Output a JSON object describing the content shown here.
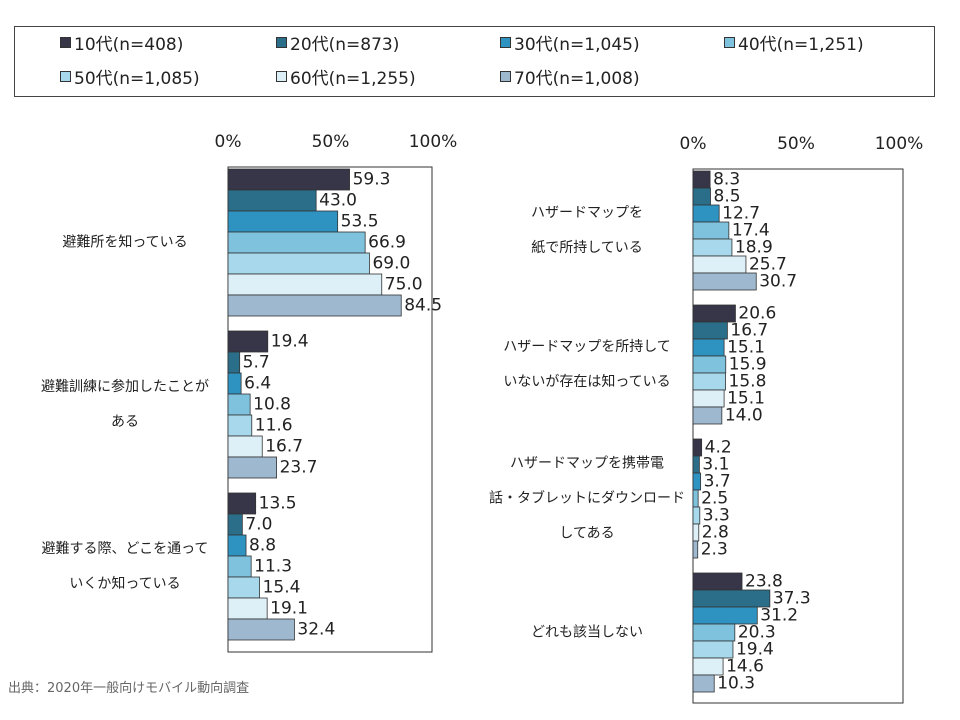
{
  "legend": [
    {
      "label": "10代(n=408)",
      "color": "#363648"
    },
    {
      "label": "20代(n=873)",
      "color": "#2A6E8A"
    },
    {
      "label": "30代(n=1,045)",
      "color": "#2E93C1"
    },
    {
      "label": "40代(n=1,251)",
      "color": "#7FC2DD"
    },
    {
      "label": "50代(n=1,085)",
      "color": "#A7D8EB"
    },
    {
      "label": "60代(n=1,255)",
      "color": "#DDF0F8"
    },
    {
      "label": "70代(n=1,008)",
      "color": "#9DB8CF"
    }
  ],
  "source": "出典：2020年一般向けモバイル動向調査",
  "chart_data": [
    {
      "type": "bar",
      "orientation": "horizontal",
      "xlim": [
        0,
        100
      ],
      "ticks": [
        "0%",
        "50%",
        "100%"
      ],
      "grid": false,
      "categories": [
        [
          "避難所を知っている"
        ],
        [
          "避難訓練に参加したことが",
          "ある"
        ],
        [
          "避難する際、どこを通って",
          "いくか知っている"
        ]
      ],
      "series": [
        {
          "name": "10代(n=408)",
          "values": [
            59.3,
            19.4,
            13.5
          ]
        },
        {
          "name": "20代(n=873)",
          "values": [
            43.0,
            5.7,
            7.0
          ]
        },
        {
          "name": "30代(n=1,045)",
          "values": [
            53.5,
            6.4,
            8.8
          ]
        },
        {
          "name": "40代(n=1,251)",
          "values": [
            66.9,
            10.8,
            11.3
          ]
        },
        {
          "name": "50代(n=1,085)",
          "values": [
            69.0,
            11.6,
            15.4
          ]
        },
        {
          "name": "60代(n=1,255)",
          "values": [
            75.0,
            16.7,
            19.1
          ]
        },
        {
          "name": "70代(n=1,008)",
          "values": [
            84.5,
            23.7,
            32.4
          ]
        }
      ]
    },
    {
      "type": "bar",
      "orientation": "horizontal",
      "xlim": [
        0,
        100
      ],
      "ticks": [
        "0%",
        "50%",
        "100%"
      ],
      "grid": false,
      "categories": [
        [
          "ハザードマップを",
          "紙で所持している"
        ],
        [
          "ハザードマップを所持して",
          "いないが存在は知っている"
        ],
        [
          "ハザードマップを携帯電",
          "話・タブレットにダウンロード",
          "してある"
        ],
        [
          "どれも該当しない"
        ]
      ],
      "series": [
        {
          "name": "10代(n=408)",
          "values": [
            8.3,
            20.6,
            4.2,
            23.8
          ]
        },
        {
          "name": "20代(n=873)",
          "values": [
            8.5,
            16.7,
            3.1,
            37.3
          ]
        },
        {
          "name": "30代(n=1,045)",
          "values": [
            12.7,
            15.1,
            3.7,
            31.2
          ]
        },
        {
          "name": "40代(n=1,251)",
          "values": [
            17.4,
            15.9,
            2.5,
            20.3
          ]
        },
        {
          "name": "50代(n=1,085)",
          "values": [
            18.9,
            15.8,
            3.3,
            19.4
          ]
        },
        {
          "name": "60代(n=1,255)",
          "values": [
            25.7,
            15.1,
            2.8,
            14.6
          ]
        },
        {
          "name": "70代(n=1,008)",
          "values": [
            30.7,
            14.0,
            2.3,
            10.3
          ]
        }
      ]
    }
  ]
}
